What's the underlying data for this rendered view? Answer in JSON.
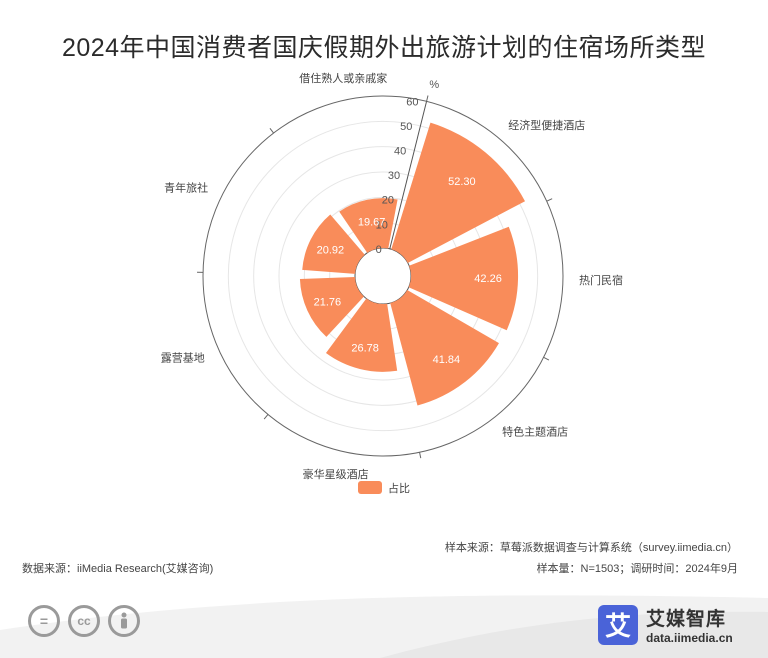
{
  "title": "2024年中国消费者国庆假期外出旅游计划的住宿场所类型",
  "chart_data": {
    "type": "bar",
    "categories": [
      "经济型便捷酒店",
      "热门民宿",
      "特色主题酒店",
      "豪华星级酒店",
      "露营基地",
      "青年旅社",
      "借住熟人或亲戚家"
    ],
    "series": [
      {
        "name": "占比",
        "values": [
          52.3,
          42.26,
          41.84,
          26.78,
          21.76,
          20.92,
          19.67
        ]
      }
    ],
    "radial_axis": {
      "min": 0,
      "max": 60,
      "ticks": [
        0,
        10,
        20,
        30,
        40,
        50,
        60
      ],
      "unit": "%"
    },
    "legend": "bottom-center",
    "color": "#f98c5a"
  },
  "footer": {
    "source_sample": "样本来源：草莓派数据调查与计算系统（survey.iimedia.cn）",
    "data_source": "数据来源：iiMedia Research(艾媒咨询)",
    "sample_size": "样本量：N=1503；调研时间：2024年9月"
  },
  "brand": {
    "logo_char": "艾",
    "name": "艾媒智库",
    "url": "data.iimedia.cn"
  },
  "license_icons": [
    "equal-icon",
    "cc-icon",
    "person-icon"
  ]
}
